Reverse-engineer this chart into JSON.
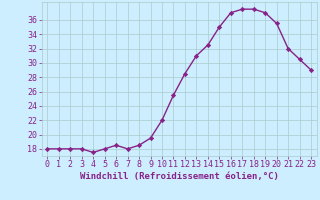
{
  "x": [
    0,
    1,
    2,
    3,
    4,
    5,
    6,
    7,
    8,
    9,
    10,
    11,
    12,
    13,
    14,
    15,
    16,
    17,
    18,
    19,
    20,
    21,
    22,
    23
  ],
  "y": [
    18,
    18,
    18,
    18,
    17.5,
    18,
    18.5,
    18,
    18.5,
    19.5,
    22,
    25.5,
    28.5,
    31,
    32.5,
    35,
    37,
    37.5,
    37.5,
    37,
    35.5,
    32,
    30.5,
    29
  ],
  "line_color": "#882288",
  "marker": "D",
  "marker_size": 2.2,
  "background_color": "#cceeff",
  "grid_color": "#aacccc",
  "xlabel": "Windchill (Refroidissement éolien,°C)",
  "xlim": [
    -0.5,
    23.5
  ],
  "ylim": [
    17,
    38.5
  ],
  "yticks": [
    18,
    20,
    22,
    24,
    26,
    28,
    30,
    32,
    34,
    36
  ],
  "xticks": [
    0,
    1,
    2,
    3,
    4,
    5,
    6,
    7,
    8,
    9,
    10,
    11,
    12,
    13,
    14,
    15,
    16,
    17,
    18,
    19,
    20,
    21,
    22,
    23
  ],
  "tick_color": "#882288",
  "label_fontsize": 6.5,
  "tick_fontsize": 6.0,
  "linewidth": 1.0
}
